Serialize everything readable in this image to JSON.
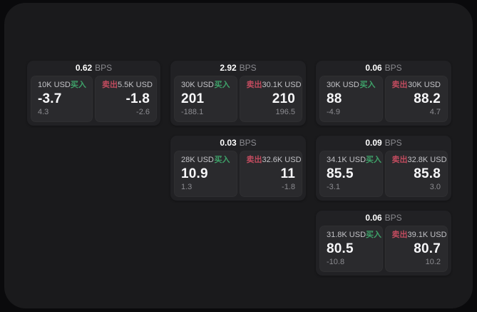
{
  "window": {
    "outer_background": "#0a0a0c",
    "background": "#1a1a1c"
  },
  "colors": {
    "card_background": "#212124",
    "panel_background": "#2a2a2d",
    "buy_green": "#3ea169",
    "sell_red": "#c04b5e",
    "price_white": "#f7f7f9",
    "muted_gray": "#8b8b90"
  },
  "labels": {
    "bps_unit": "BPS",
    "buy": "买入",
    "sell": "卖出"
  },
  "cards": [
    {
      "row": 1,
      "col": 1,
      "bps": "0.62",
      "buy": {
        "amount": "10K USD",
        "price": "-3.7",
        "delta": "4.3"
      },
      "sell": {
        "amount": "5.5K USD",
        "price": "-1.8",
        "delta": "-2.6"
      }
    },
    {
      "row": 1,
      "col": 2,
      "bps": "2.92",
      "buy": {
        "amount": "30K USD",
        "price": "201",
        "delta": "-188.1"
      },
      "sell": {
        "amount": "30.1K USD",
        "price": "210",
        "delta": "196.5"
      }
    },
    {
      "row": 1,
      "col": 3,
      "bps": "0.06",
      "buy": {
        "amount": "30K USD",
        "price": "88",
        "delta": "-4.9"
      },
      "sell": {
        "amount": "30K USD",
        "price": "88.2",
        "delta": "4.7"
      }
    },
    {
      "row": 2,
      "col": 2,
      "bps": "0.03",
      "buy": {
        "amount": "28K USD",
        "price": "10.9",
        "delta": "1.3"
      },
      "sell": {
        "amount": "32.6K USD",
        "price": "11",
        "delta": "-1.8"
      }
    },
    {
      "row": 2,
      "col": 3,
      "bps": "0.09",
      "buy": {
        "amount": "34.1K USD",
        "price": "85.5",
        "delta": "-3.1"
      },
      "sell": {
        "amount": "32.8K USD",
        "price": "85.8",
        "delta": "3.0"
      }
    },
    {
      "row": 3,
      "col": 3,
      "bps": "0.06",
      "buy": {
        "amount": "31.8K USD",
        "price": "80.5",
        "delta": "-10.8"
      },
      "sell": {
        "amount": "39.1K USD",
        "price": "80.7",
        "delta": "10.2"
      }
    }
  ]
}
